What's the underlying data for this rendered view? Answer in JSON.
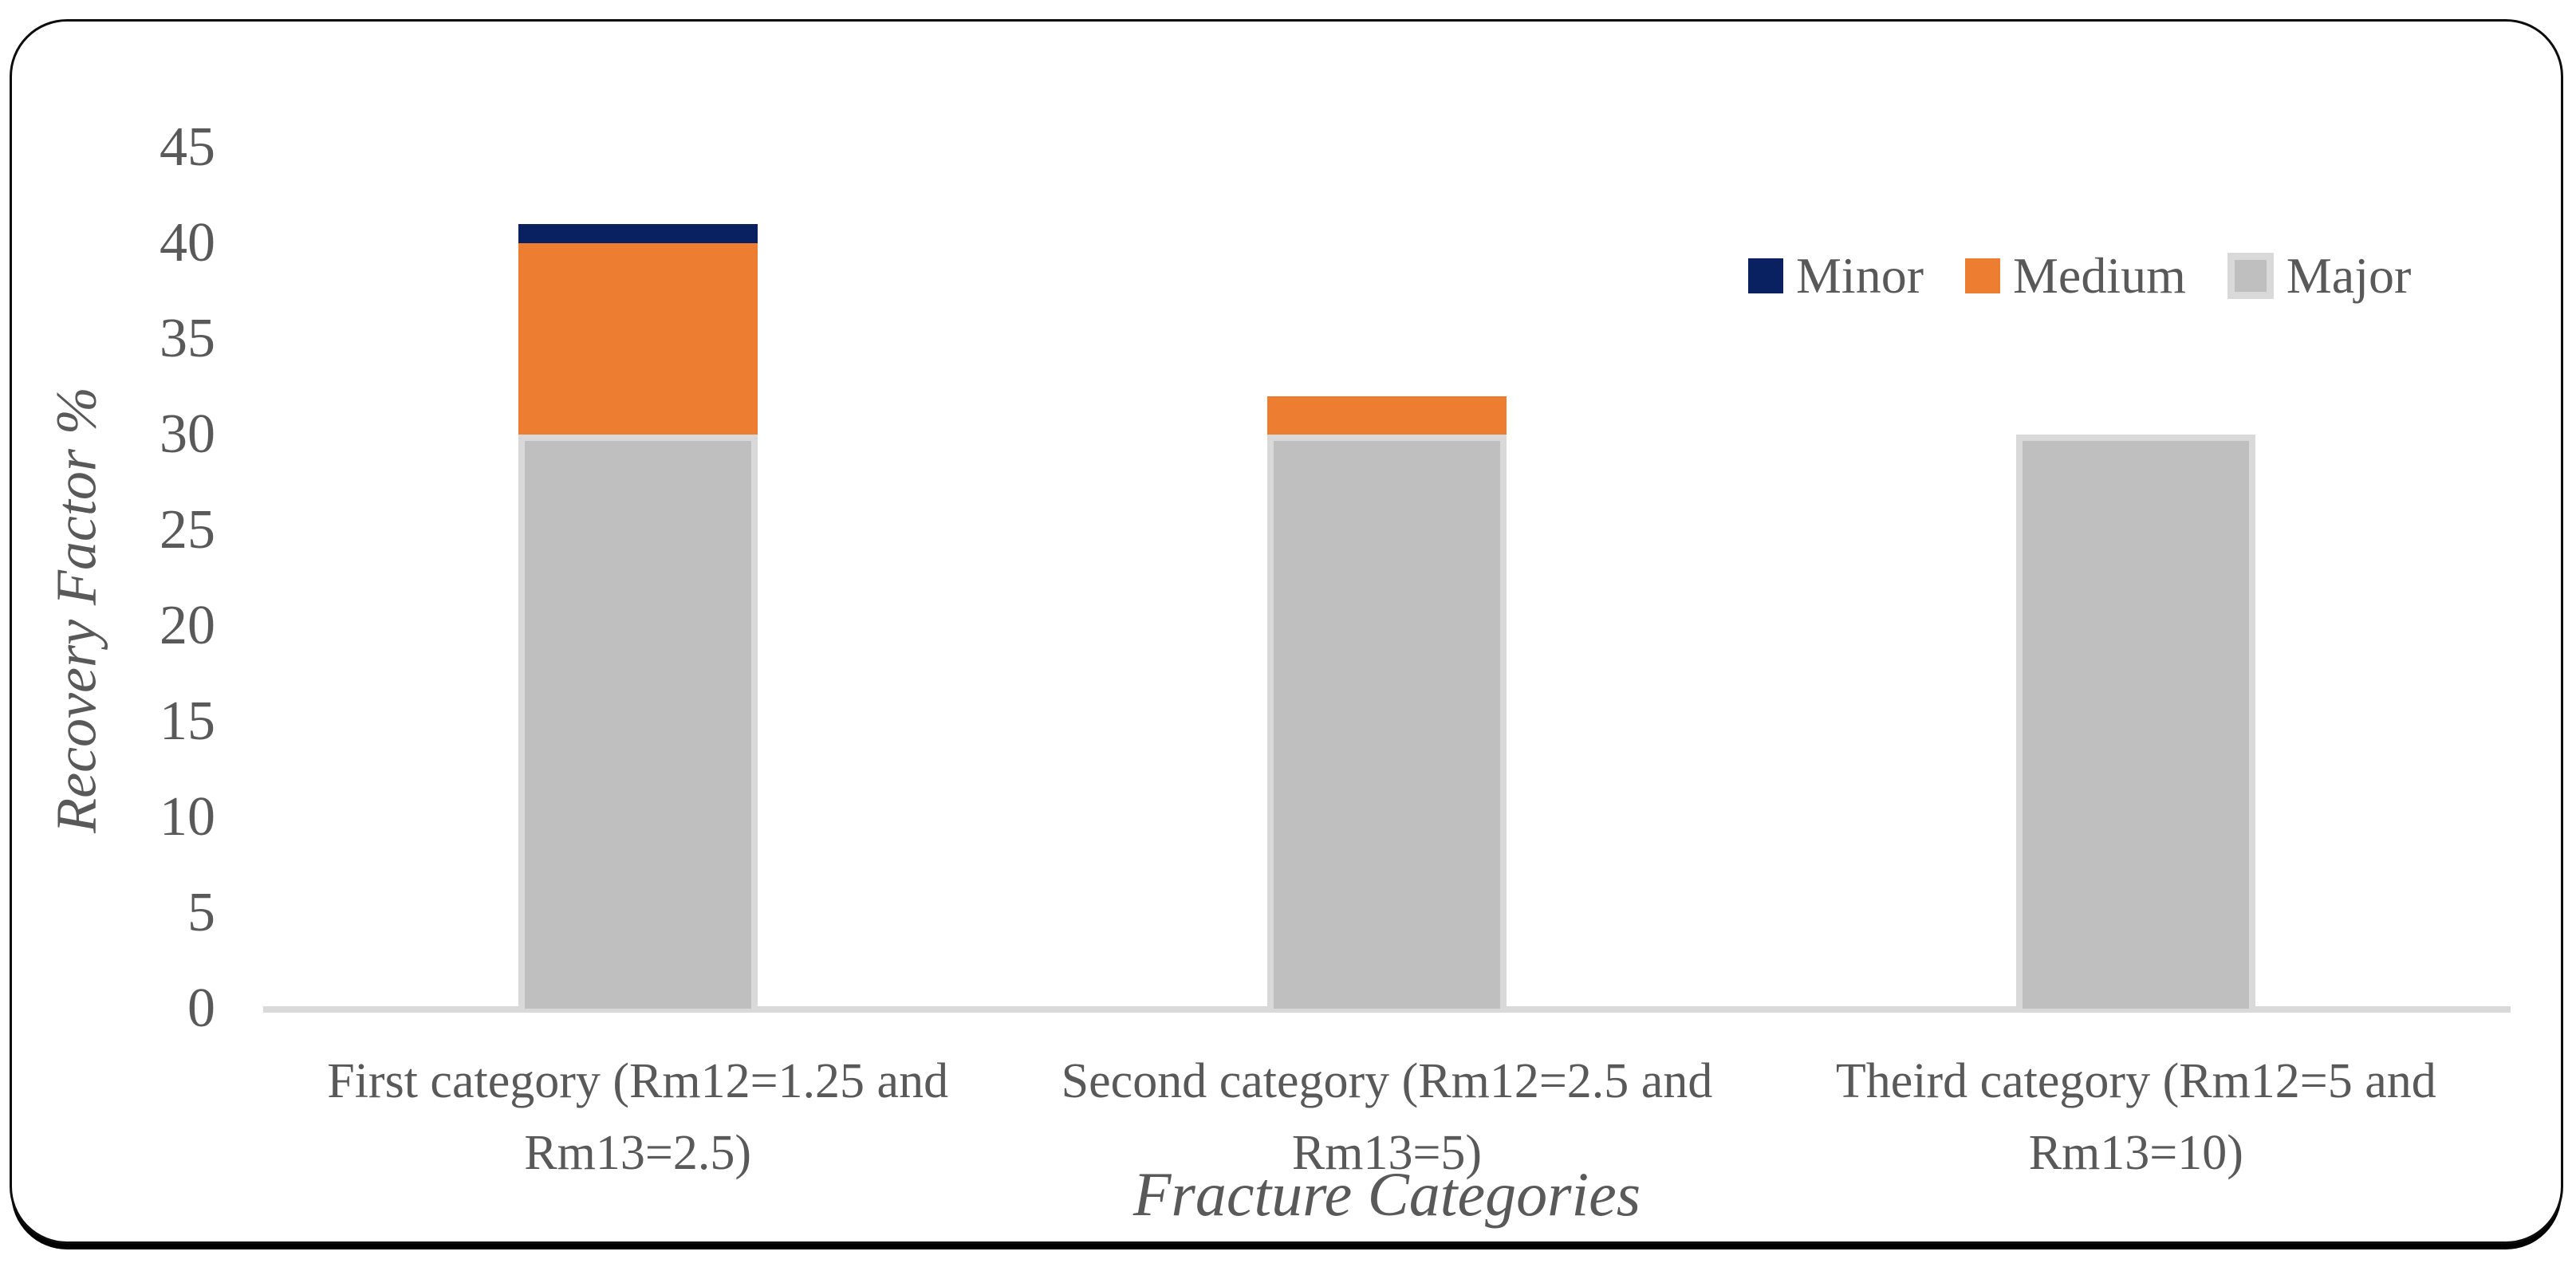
{
  "chart_data": {
    "type": "bar",
    "stacked": true,
    "title": "",
    "xlabel": "Fracture Categories",
    "ylabel": "Recovery Factor %",
    "categories": [
      "First category (Rm12=1.25 and Rm13=2.5)",
      "Second category (Rm12=2.5 and Rm13=5)",
      "Theird category (Rm12=5 and Rm13=10)"
    ],
    "series": [
      {
        "name": "Major",
        "color": "#bfbfbf",
        "border_color": "#d9d9d9",
        "values": [
          30,
          30,
          30
        ]
      },
      {
        "name": "Medium",
        "color": "#ed7d31",
        "values": [
          10,
          2,
          0
        ]
      },
      {
        "name": "Minor",
        "color": "#0a2161",
        "values": [
          1,
          0,
          0
        ]
      }
    ],
    "totals": [
      41,
      32,
      30
    ],
    "legend": {
      "position": "top-right",
      "entries": [
        "Minor",
        "Medium",
        "Major"
      ]
    },
    "y_ticks": [
      45,
      40,
      35,
      30,
      25,
      20,
      15,
      10,
      5,
      0
    ],
    "ylim": [
      0,
      45
    ],
    "grid": false
  },
  "colors": {
    "text": "#595959",
    "axis_line": "#d9d9d9",
    "frame_border": "#0d0d0d",
    "background": "#ffffff"
  }
}
